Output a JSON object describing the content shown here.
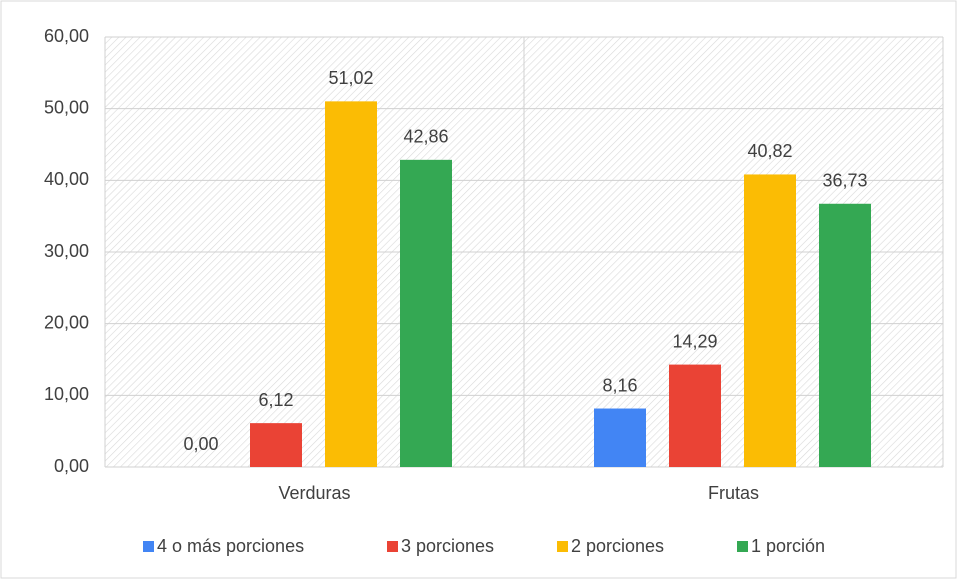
{
  "chart_data": {
    "type": "bar",
    "categories": [
      "Verduras",
      "Frutas"
    ],
    "series": [
      {
        "name": "4 o más porciones",
        "color": "#4285f4",
        "values": [
          0,
          8.16
        ],
        "value_labels": [
          "0,00",
          "8,16"
        ]
      },
      {
        "name": "3 porciones",
        "color": "#ea4335",
        "values": [
          6.12,
          14.29
        ],
        "value_labels": [
          "6,12",
          "14,29"
        ]
      },
      {
        "name": "2 porciones",
        "color": "#fbbc04",
        "values": [
          51.02,
          40.82
        ],
        "value_labels": [
          "51,02",
          "40,82"
        ]
      },
      {
        "name": "1 porción",
        "color": "#34a853",
        "values": [
          42.86,
          36.73
        ],
        "value_labels": [
          "42,86",
          "36,73"
        ]
      }
    ],
    "ylim": [
      0,
      60
    ],
    "yticks": [
      {
        "value": 0,
        "label": "0,00"
      },
      {
        "value": 10,
        "label": "10,00"
      },
      {
        "value": 20,
        "label": "20,00"
      },
      {
        "value": 30,
        "label": "30,00"
      },
      {
        "value": 40,
        "label": "40,00"
      },
      {
        "value": 50,
        "label": "50,00"
      },
      {
        "value": 60,
        "label": "60,00"
      }
    ],
    "grid": true,
    "legend": "bottom"
  }
}
